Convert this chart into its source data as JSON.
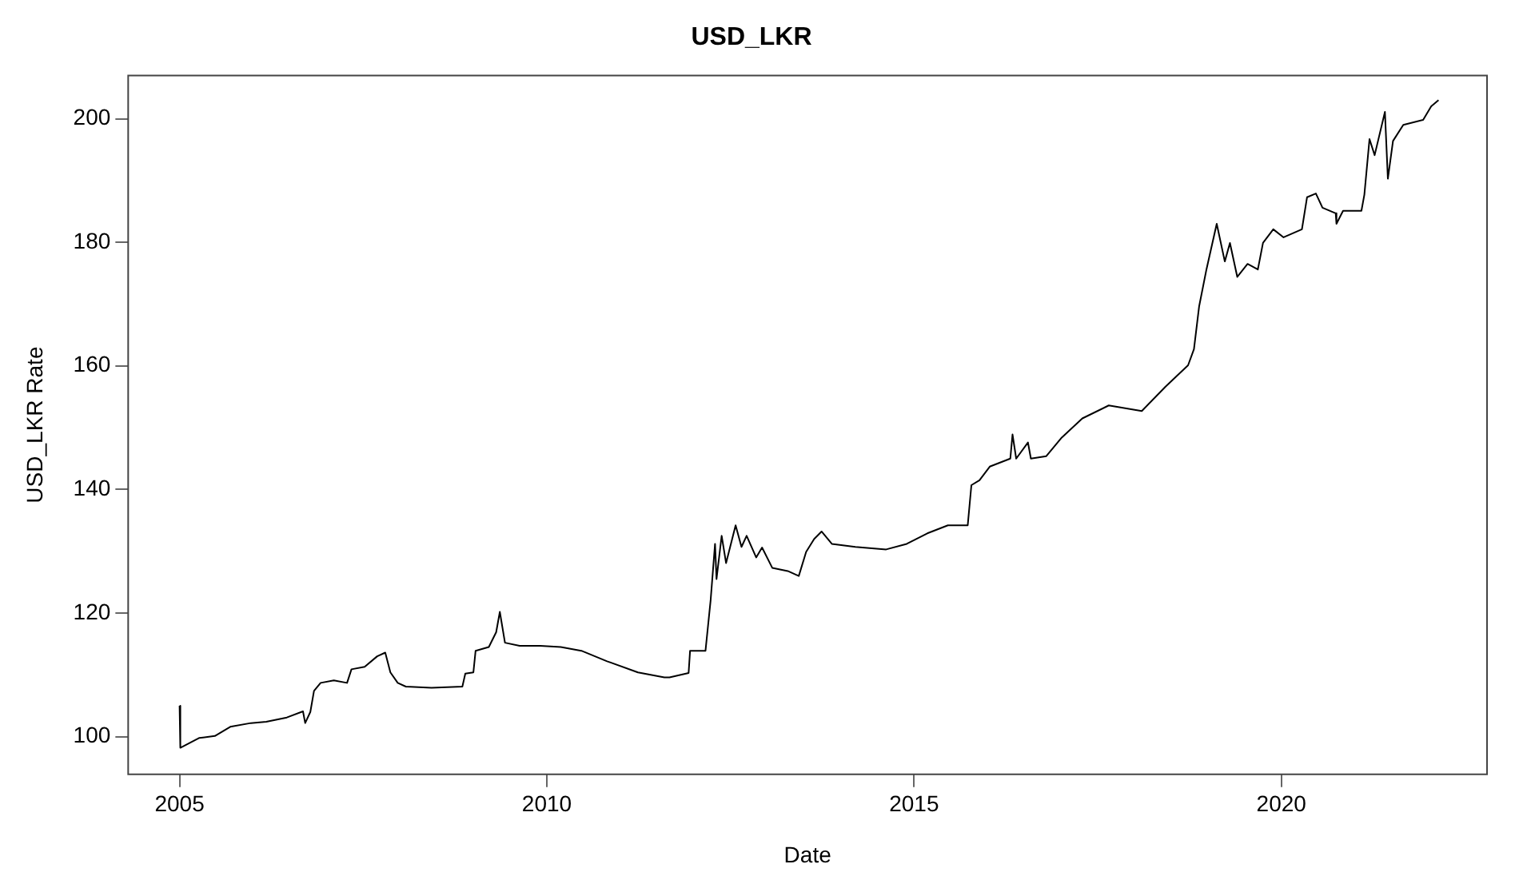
{
  "chart_data": {
    "type": "line",
    "title": "USD_LKR",
    "xlabel": "Date",
    "ylabel": "USD_LKR Rate",
    "xlim": [
      2004.3,
      2022.8
    ],
    "xticks": [
      2005,
      2010,
      2015,
      2020
    ],
    "ylim": [
      93.9,
      207
    ],
    "yticks": [
      100,
      120,
      140,
      160,
      180,
      200
    ],
    "grid": false,
    "legend": false,
    "marker": "none",
    "line_style": "solid",
    "series": [
      {
        "color": "#000000",
        "x": [
          2005.0,
          2005.01,
          2005.27,
          2005.48,
          2005.69,
          2005.97,
          2006.18,
          2006.46,
          2006.68,
          2006.71,
          2006.78,
          2006.83,
          2006.92,
          2007.1,
          2007.28,
          2007.34,
          2007.52,
          2007.69,
          2007.8,
          2007.87,
          2007.97,
          2008.08,
          2008.43,
          2008.85,
          2008.89,
          2009.0,
          2009.03,
          2009.21,
          2009.31,
          2009.36,
          2009.43,
          2009.63,
          2009.91,
          2010.19,
          2010.47,
          2010.82,
          2011.24,
          2011.6,
          2011.67,
          2011.93,
          2011.95,
          2012.16,
          2012.23,
          2012.29,
          2012.31,
          2012.38,
          2012.44,
          2012.57,
          2012.65,
          2012.72,
          2012.85,
          2012.93,
          2013.07,
          2013.28,
          2013.43,
          2013.53,
          2013.64,
          2013.74,
          2013.88,
          2014.2,
          2014.62,
          2014.9,
          2015.18,
          2015.46,
          2015.73,
          2015.78,
          2015.89,
          2016.03,
          2016.31,
          2016.34,
          2016.39,
          2016.55,
          2016.59,
          2016.8,
          2017.01,
          2017.29,
          2017.65,
          2018.1,
          2018.42,
          2018.73,
          2018.81,
          2018.88,
          2018.98,
          2019.12,
          2019.23,
          2019.3,
          2019.4,
          2019.54,
          2019.68,
          2019.75,
          2019.89,
          2020.03,
          2020.28,
          2020.35,
          2020.47,
          2020.56,
          2020.74,
          2020.75,
          2020.84,
          2021.09,
          2021.13,
          2021.2,
          2021.27,
          2021.41,
          2021.45,
          2021.52,
          2021.66,
          2021.93,
          2022.04,
          2022.14
        ],
        "values": [
          105.0,
          98.2,
          99.8,
          100.1,
          101.6,
          102.2,
          102.4,
          103.1,
          104.1,
          102.2,
          104.0,
          107.4,
          108.7,
          109.1,
          108.7,
          110.9,
          111.3,
          113.0,
          113.6,
          110.4,
          108.7,
          108.1,
          107.9,
          108.1,
          110.2,
          110.4,
          113.9,
          114.5,
          116.9,
          120.2,
          115.2,
          114.7,
          114.7,
          114.5,
          113.9,
          112.2,
          110.4,
          109.6,
          109.6,
          110.3,
          113.9,
          113.9,
          122.1,
          131.2,
          125.5,
          132.5,
          128.1,
          134.2,
          130.7,
          132.5,
          129.0,
          130.6,
          127.3,
          126.8,
          126.0,
          129.9,
          132.0,
          133.2,
          131.2,
          130.7,
          130.3,
          131.2,
          132.9,
          134.2,
          134.2,
          140.7,
          141.5,
          143.7,
          145.0,
          148.9,
          145.0,
          147.6,
          145.0,
          145.4,
          148.4,
          151.5,
          153.6,
          152.7,
          156.6,
          160.1,
          162.7,
          169.6,
          175.6,
          183.0,
          176.9,
          179.9,
          174.4,
          176.5,
          175.6,
          179.9,
          182.1,
          180.8,
          182.1,
          187.3,
          187.9,
          185.6,
          184.7,
          183.0,
          185.1,
          185.1,
          187.7,
          196.7,
          194.1,
          201.1,
          190.3,
          196.4,
          199.0,
          199.8,
          202.0,
          203.0
        ]
      }
    ]
  }
}
